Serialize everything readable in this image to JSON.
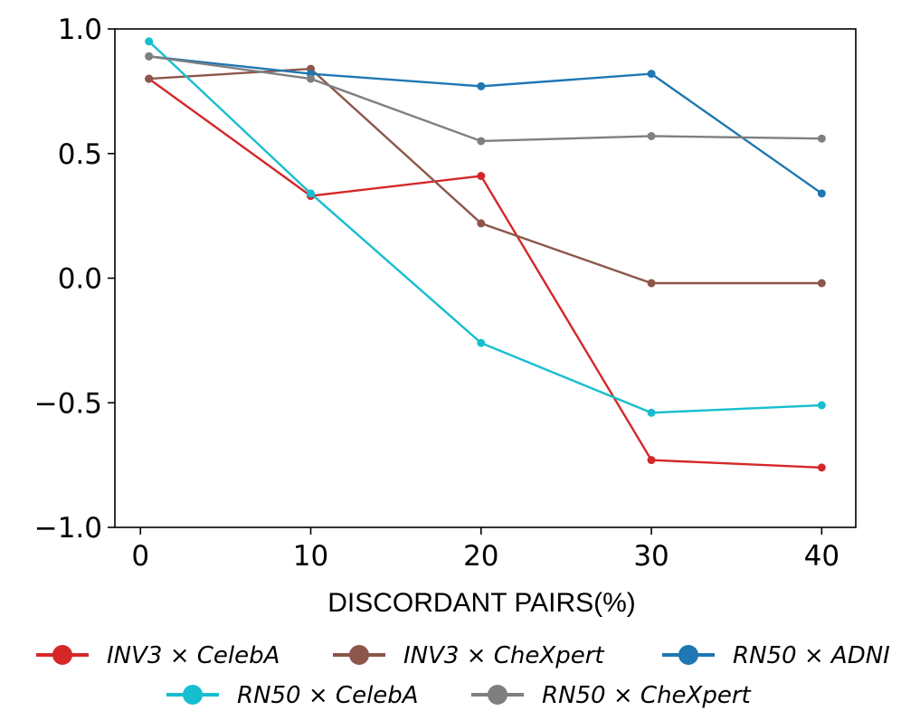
{
  "chart_data": {
    "type": "line",
    "title": "",
    "xlabel": "DISCORDANT PAIRS(%)",
    "ylabel": "",
    "xlim": [
      -1.5,
      42.0
    ],
    "ylim": [
      -1.0,
      1.0
    ],
    "xticks": [
      0,
      10,
      20,
      30,
      40
    ],
    "yticks": [
      1.0,
      0.5,
      0.0,
      -0.5,
      -1.0
    ],
    "ytick_labels": [
      "1.0",
      "0.5",
      "0.0",
      "−0.5",
      "−1.0"
    ],
    "x": [
      0.5,
      10,
      20,
      30,
      40
    ],
    "grid": false,
    "legend_placement": "bottom-center",
    "series": [
      {
        "name": "INV3 × CelebA",
        "color": "#d62728",
        "values": [
          0.8,
          0.33,
          0.41,
          -0.73,
          -0.76
        ]
      },
      {
        "name": "INV3 × CheXpert",
        "color": "#8c564b",
        "values": [
          0.8,
          0.84,
          0.22,
          -0.02,
          -0.02
        ]
      },
      {
        "name": "RN50 × ADNI",
        "color": "#1f77b4",
        "values": [
          0.89,
          0.82,
          0.77,
          0.82,
          0.34
        ]
      },
      {
        "name": "RN50 × CelebA",
        "color": "#17becf",
        "values": [
          0.95,
          0.34,
          -0.26,
          -0.54,
          -0.51
        ]
      },
      {
        "name": "RN50 × CheXpert",
        "color": "#7f7f7f",
        "values": [
          0.89,
          0.8,
          0.55,
          0.57,
          0.56
        ]
      }
    ]
  }
}
